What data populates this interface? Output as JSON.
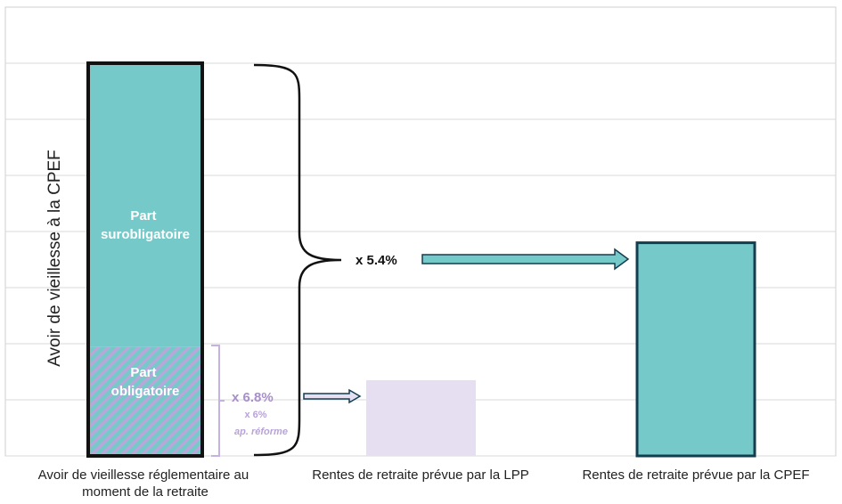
{
  "chart_data": {
    "type": "bar",
    "ylabel": "Avoir de vieillesse à la CPEF",
    "categories": [
      "Avoir de vieillesse réglementaire au moment de la retraite",
      "Rentes de retraite prévue par la LPP",
      "Rentes de retraite prévue par la CPEF"
    ],
    "category_lines": [
      [
        "Avoir de vieillesse réglementaire au",
        "moment de la retraite"
      ],
      [
        "Rentes de retraite prévue par la LPP"
      ],
      [
        "Rentes de retraite prévue par la CPEF"
      ]
    ],
    "ylim": [
      0,
      7
    ],
    "grid": true,
    "stack": [
      {
        "name": "Part obligatoire",
        "label_lines": [
          "Part",
          "obligatoire"
        ],
        "value": 1.95,
        "color": "#75c9c8",
        "hatch": "#b9a7da"
      },
      {
        "name": "Part surobligatoire",
        "label_lines": [
          "Part",
          "surobligatoire"
        ],
        "value": 5.05,
        "color": "#75c9c8"
      }
    ],
    "bars": [
      {
        "category_index": 1,
        "value": 1.35,
        "color": "#e6dff2"
      },
      {
        "category_index": 2,
        "value": 3.8,
        "color": "#75c9c8",
        "border": "#143d4f"
      }
    ],
    "annotations": {
      "factor_main": "x 5.4%",
      "factor_low": "x 6.8%",
      "factor_low_alt": "x 6%",
      "factor_low_note": "ap. réforme"
    },
    "colors": {
      "teal": "#75c9c8",
      "lavender": "#e6dff2",
      "hatch": "#b9a7da",
      "border": "#111111",
      "dark_border": "#143d4f",
      "grid": "#d9d9d9"
    }
  }
}
